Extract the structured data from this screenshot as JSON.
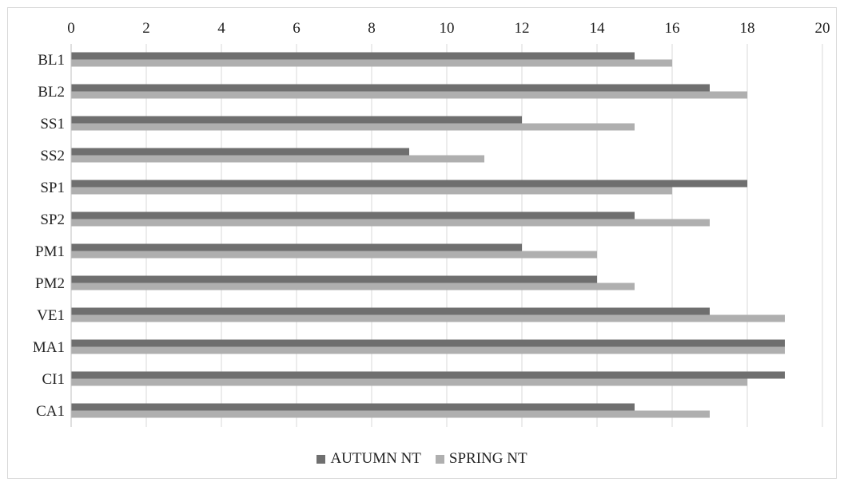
{
  "chart_data": {
    "type": "bar",
    "orientation": "horizontal",
    "categories": [
      "BL1",
      "BL2",
      "SS1",
      "SS2",
      "SP1",
      "SP2",
      "PM1",
      "PM2",
      "VE1",
      "MA1",
      "CI1",
      "CA1"
    ],
    "series": [
      {
        "name": "AUTUMN NT",
        "color": "#6f6f6f",
        "values": [
          15,
          17,
          12,
          9,
          18,
          15,
          12,
          14,
          17,
          19,
          19,
          15
        ]
      },
      {
        "name": "SPRING NT",
        "color": "#afafaf",
        "values": [
          16,
          18,
          15,
          11,
          16,
          17,
          14,
          15,
          19,
          19,
          18,
          17
        ]
      }
    ],
    "xlim": [
      0,
      20
    ],
    "x_ticks": [
      0,
      2,
      4,
      6,
      8,
      10,
      12,
      14,
      16,
      18,
      20
    ],
    "x_axis_position": "top",
    "grid": true,
    "legend_position": "bottom",
    "title": "",
    "xlabel": "",
    "ylabel": ""
  }
}
